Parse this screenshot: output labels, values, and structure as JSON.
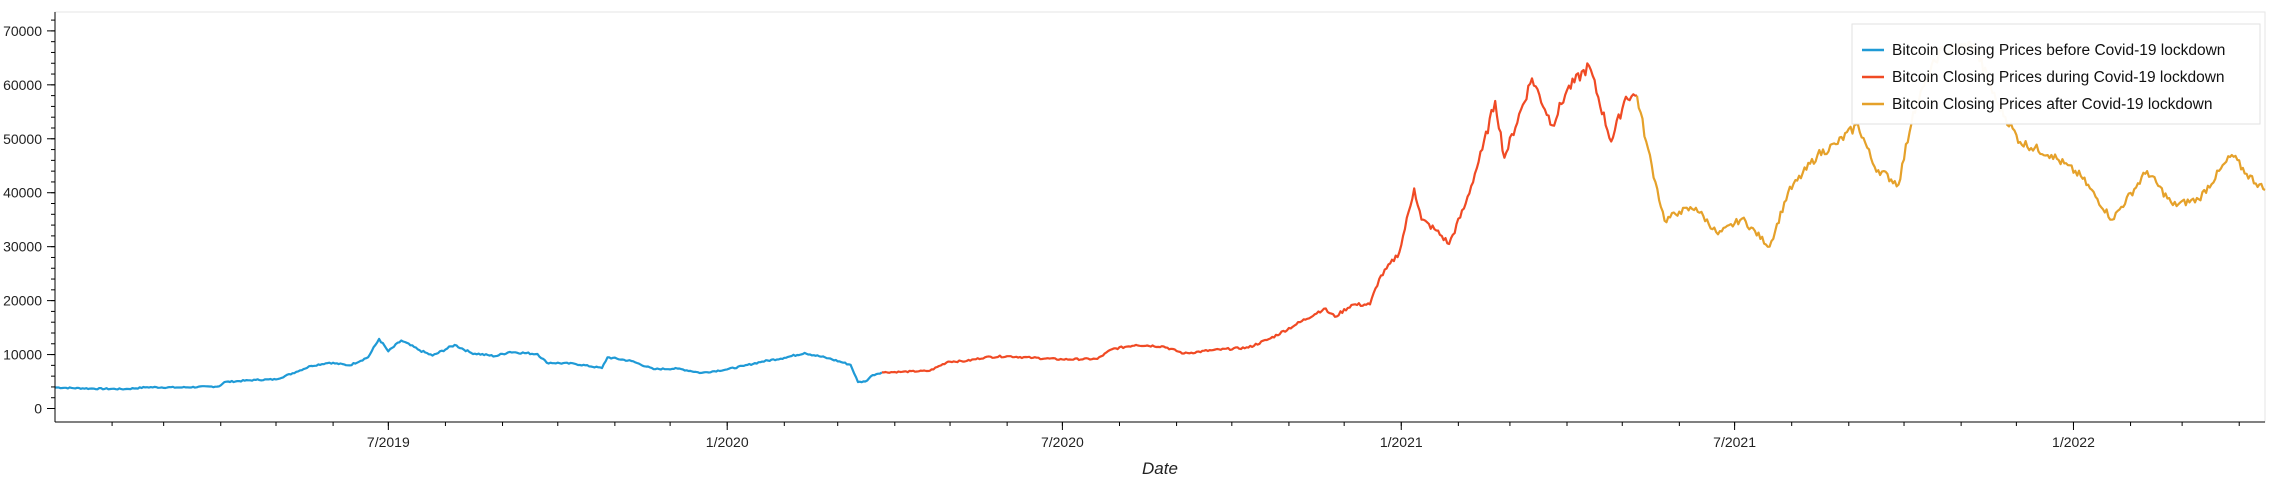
{
  "chart_data": {
    "type": "line",
    "title": "",
    "xlabel": "Date",
    "ylabel": "",
    "x_range": [
      "2019-01-01",
      "2022-04-15"
    ],
    "ylim": [
      -2500,
      73500
    ],
    "x_ticks": [
      {
        "date": "2019-07-01",
        "label": "7/2019"
      },
      {
        "date": "2020-01-01",
        "label": "1/2020"
      },
      {
        "date": "2020-07-01",
        "label": "7/2020"
      },
      {
        "date": "2021-01-01",
        "label": "1/2021"
      },
      {
        "date": "2021-07-01",
        "label": "7/2021"
      },
      {
        "date": "2022-01-01",
        "label": "1/2022"
      }
    ],
    "y_ticks": [
      {
        "value": 0,
        "label": "0"
      },
      {
        "value": 10000,
        "label": "10000"
      },
      {
        "value": 20000,
        "label": "20000"
      },
      {
        "value": 30000,
        "label": "30000"
      },
      {
        "value": 40000,
        "label": "40000"
      },
      {
        "value": 50000,
        "label": "50000"
      },
      {
        "value": 60000,
        "label": "60000"
      },
      {
        "value": 70000,
        "label": "70000"
      }
    ],
    "grid": false,
    "legend_position": "top-right",
    "series": [
      {
        "name": "Bitcoin Closing Prices before Covid-19 lockdown",
        "color": "#1f9ad6",
        "points": [
          [
            "2019-01-01",
            3900
          ],
          [
            "2019-01-20",
            3700
          ],
          [
            "2019-02-08",
            3600
          ],
          [
            "2019-02-20",
            3950
          ],
          [
            "2019-03-10",
            3900
          ],
          [
            "2019-03-31",
            4100
          ],
          [
            "2019-04-03",
            4900
          ],
          [
            "2019-04-20",
            5300
          ],
          [
            "2019-05-01",
            5400
          ],
          [
            "2019-05-12",
            6800
          ],
          [
            "2019-05-20",
            7900
          ],
          [
            "2019-05-30",
            8500
          ],
          [
            "2019-06-10",
            8000
          ],
          [
            "2019-06-20",
            9500
          ],
          [
            "2019-06-26",
            12900
          ],
          [
            "2019-07-01",
            10600
          ],
          [
            "2019-07-08",
            12600
          ],
          [
            "2019-07-18",
            10800
          ],
          [
            "2019-07-25",
            9800
          ],
          [
            "2019-08-06",
            11800
          ],
          [
            "2019-08-15",
            10300
          ],
          [
            "2019-08-28",
            9700
          ],
          [
            "2019-09-05",
            10500
          ],
          [
            "2019-09-20",
            10100
          ],
          [
            "2019-09-25",
            8500
          ],
          [
            "2019-10-10",
            8300
          ],
          [
            "2019-10-25",
            7500
          ],
          [
            "2019-10-28",
            9500
          ],
          [
            "2019-11-10",
            8800
          ],
          [
            "2019-11-22",
            7300
          ],
          [
            "2019-12-05",
            7400
          ],
          [
            "2019-12-18",
            6600
          ],
          [
            "2019-12-31",
            7200
          ],
          [
            "2020-01-10",
            7900
          ],
          [
            "2020-01-20",
            8700
          ],
          [
            "2020-02-01",
            9400
          ],
          [
            "2020-02-12",
            10300
          ],
          [
            "2020-02-25",
            9300
          ],
          [
            "2020-03-08",
            8100
          ],
          [
            "2020-03-12",
            4900
          ],
          [
            "2020-03-16",
            5000
          ],
          [
            "2020-03-20",
            6200
          ],
          [
            "2020-03-25",
            6700
          ]
        ]
      },
      {
        "name": "Bitcoin Closing Prices during Covid-19 lockdown",
        "color": "#f04a24",
        "points": [
          [
            "2020-03-25",
            6700
          ],
          [
            "2020-04-05",
            6800
          ],
          [
            "2020-04-20",
            7000
          ],
          [
            "2020-04-30",
            8700
          ],
          [
            "2020-05-10",
            8800
          ],
          [
            "2020-05-20",
            9500
          ],
          [
            "2020-06-01",
            9700
          ],
          [
            "2020-06-15",
            9400
          ],
          [
            "2020-07-01",
            9100
          ],
          [
            "2020-07-20",
            9200
          ],
          [
            "2020-07-28",
            11000
          ],
          [
            "2020-08-10",
            11800
          ],
          [
            "2020-08-25",
            11500
          ],
          [
            "2020-09-05",
            10200
          ],
          [
            "2020-09-20",
            10800
          ],
          [
            "2020-10-10",
            11300
          ],
          [
            "2020-10-22",
            13000
          ],
          [
            "2020-11-05",
            15600
          ],
          [
            "2020-11-20",
            18500
          ],
          [
            "2020-11-26",
            17000
          ],
          [
            "2020-12-05",
            19200
          ],
          [
            "2020-12-15",
            19300
          ],
          [
            "2020-12-20",
            24000
          ],
          [
            "2020-12-31",
            29000
          ],
          [
            "2021-01-08",
            40800
          ],
          [
            "2021-01-12",
            35000
          ],
          [
            "2021-01-20",
            33000
          ],
          [
            "2021-01-27",
            30500
          ],
          [
            "2021-02-05",
            38000
          ],
          [
            "2021-02-14",
            48000
          ],
          [
            "2021-02-21",
            57000
          ],
          [
            "2021-02-26",
            46500
          ],
          [
            "2021-03-13",
            61200
          ],
          [
            "2021-03-24",
            52500
          ],
          [
            "2021-04-01",
            59000
          ],
          [
            "2021-04-13",
            63500
          ],
          [
            "2021-04-25",
            49500
          ],
          [
            "2021-05-03",
            57800
          ],
          [
            "2021-05-09",
            58000
          ]
        ]
      },
      {
        "name": "Bitcoin Closing Prices after Covid-19 lockdown",
        "color": "#e5a12a",
        "points": [
          [
            "2021-05-09",
            58000
          ],
          [
            "2021-05-14",
            49500
          ],
          [
            "2021-05-19",
            42000
          ],
          [
            "2021-05-24",
            34800
          ],
          [
            "2021-06-01",
            36500
          ],
          [
            "2021-06-10",
            37200
          ],
          [
            "2021-06-22",
            32300
          ],
          [
            "2021-07-05",
            35200
          ],
          [
            "2021-07-20",
            30000
          ],
          [
            "2021-07-30",
            40000
          ],
          [
            "2021-08-15",
            47000
          ],
          [
            "2021-08-25",
            49000
          ],
          [
            "2021-09-06",
            52600
          ],
          [
            "2021-09-15",
            44800
          ],
          [
            "2021-09-28",
            41500
          ],
          [
            "2021-10-06",
            55000
          ],
          [
            "2021-10-20",
            66000
          ],
          [
            "2021-11-08",
            67500
          ],
          [
            "2021-11-20",
            57000
          ],
          [
            "2021-12-03",
            49400
          ],
          [
            "2021-12-20",
            47000
          ],
          [
            "2022-01-05",
            43100
          ],
          [
            "2022-01-22",
            35000
          ],
          [
            "2022-02-10",
            44000
          ],
          [
            "2022-02-24",
            37700
          ],
          [
            "2022-03-10",
            38800
          ],
          [
            "2022-03-28",
            47000
          ],
          [
            "2022-04-05",
            43500
          ],
          [
            "2022-04-15",
            40500
          ]
        ]
      }
    ]
  }
}
